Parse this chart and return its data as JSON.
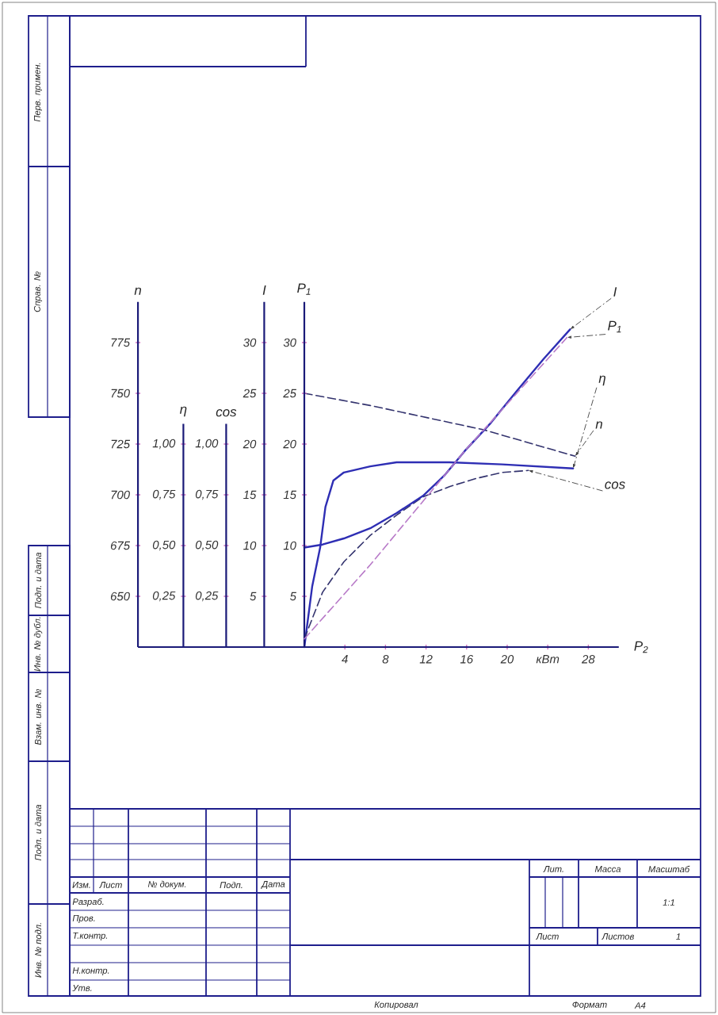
{
  "chart_data": [
    {
      "type": "line",
      "ylabel": "n",
      "xlim": [
        -16.4,
        31
      ],
      "ylim": [
        625,
        795
      ],
      "yticks": [
        650,
        675,
        700,
        725,
        750,
        775
      ],
      "tick_labels": "y",
      "series": [
        {
          "name": "n",
          "color": "#33336e",
          "line_style": "dashed",
          "x": [
            0,
            6.5,
            17.7,
            26.7
          ],
          "values": [
            750,
            744,
            732,
            719
          ]
        }
      ]
    },
    {
      "type": "line",
      "ylabel": "η",
      "xlim": [
        -16.4,
        31
      ],
      "ylim": [
        0,
        1.1
      ],
      "yticks": [
        {
          "value": 0.25,
          "label": "0,25"
        },
        {
          "value": 0.5,
          "label": "0,50"
        },
        {
          "value": 0.75,
          "label": "0,75"
        },
        {
          "value": 1,
          "label": "1,00"
        }
      ],
      "tick_labels": "y",
      "series": [
        {
          "name": "η",
          "color": "#2e2eb4",
          "line_style": "solid",
          "x": [
            0,
            0.78,
            1.56,
            2.08,
            2.86,
            3.9,
            6.5,
            9.1,
            14.3,
            19.5,
            26.5
          ],
          "values": [
            0,
            0.3,
            0.49,
            0.69,
            0.82,
            0.86,
            0.89,
            0.91,
            0.91,
            0.9,
            0.88
          ]
        }
      ]
    },
    {
      "type": "line",
      "ylabel": "cos",
      "xlim": [
        -16.4,
        31
      ],
      "ylim": [
        0,
        1.1
      ],
      "yticks": [
        {
          "value": 0.25,
          "label": "0,25"
        },
        {
          "value": 0.5,
          "label": "0,50"
        },
        {
          "value": 0.75,
          "label": "0,75"
        },
        {
          "value": 1,
          "label": "1,00"
        }
      ],
      "tick_labels": "y",
      "series": [
        {
          "name": "cos",
          "color": "#33336e",
          "line_style": "dashed",
          "x": [
            0,
            1.8,
            3.9,
            6.5,
            9.1,
            11.7,
            14.3,
            16.9,
            19.5,
            22.1
          ],
          "values": [
            0.04,
            0.27,
            0.42,
            0.55,
            0.65,
            0.74,
            0.79,
            0.83,
            0.86,
            0.87
          ]
        }
      ]
    },
    {
      "type": "line",
      "ylabel": "I",
      "xlim": [
        -16.4,
        31
      ],
      "ylim": [
        0,
        34
      ],
      "yticks": [
        5,
        10,
        15,
        20,
        25,
        30
      ],
      "tick_labels": "y",
      "series": [
        {
          "name": "I",
          "color": "#2e2eb4",
          "line_style": "solid",
          "x": [
            0,
            1.8,
            3.9,
            6.5,
            9.1,
            11.7,
            13.8,
            15.8,
            18.4,
            21.0,
            23.6,
            26.2
          ],
          "values": [
            9.8,
            10.1,
            10.7,
            11.7,
            13.2,
            14.9,
            16.9,
            19.3,
            22.1,
            25.3,
            28.4,
            31.3
          ]
        }
      ]
    },
    {
      "type": "line",
      "xlabel": "P$_{2}$",
      "ylabel": "P$_{1}$",
      "xlim": [
        -16.4,
        31
      ],
      "xticks": [
        4,
        8,
        12,
        16,
        20,
        {
          "value": 24,
          "label": "кВт"
        },
        28
      ],
      "ylim": [
        0,
        34
      ],
      "yticks": [
        5,
        10,
        15,
        20,
        25,
        30
      ],
      "series": [
        {
          "name": "P$_{1}$",
          "color": "#b87ac8",
          "line_style": "dashed",
          "x": [
            0,
            6.5,
            15.8,
            25.9
          ],
          "values": [
            0.8,
            8.1,
            19.3,
            30.5
          ]
        }
      ]
    },
    {
      "type": "other",
      "annotations": [
        "Перв. примен.",
        "Справ. №",
        "Подп. и дата",
        "Инв. № дубл.",
        "Взам. инв. №",
        "Подп. и дата",
        "Инв. № подл.",
        "Изм.",
        "Лист",
        "№ докум.",
        "Подп.",
        "Дата",
        "Разраб.",
        "Пров.",
        "Т.контр.",
        "Н.контр.",
        "Утв.",
        "Лит.",
        "Масса",
        "Масштаб",
        "1:1",
        "Лист",
        "Листов",
        "1",
        "Копировал",
        "Формат",
        "А4"
      ]
    }
  ]
}
